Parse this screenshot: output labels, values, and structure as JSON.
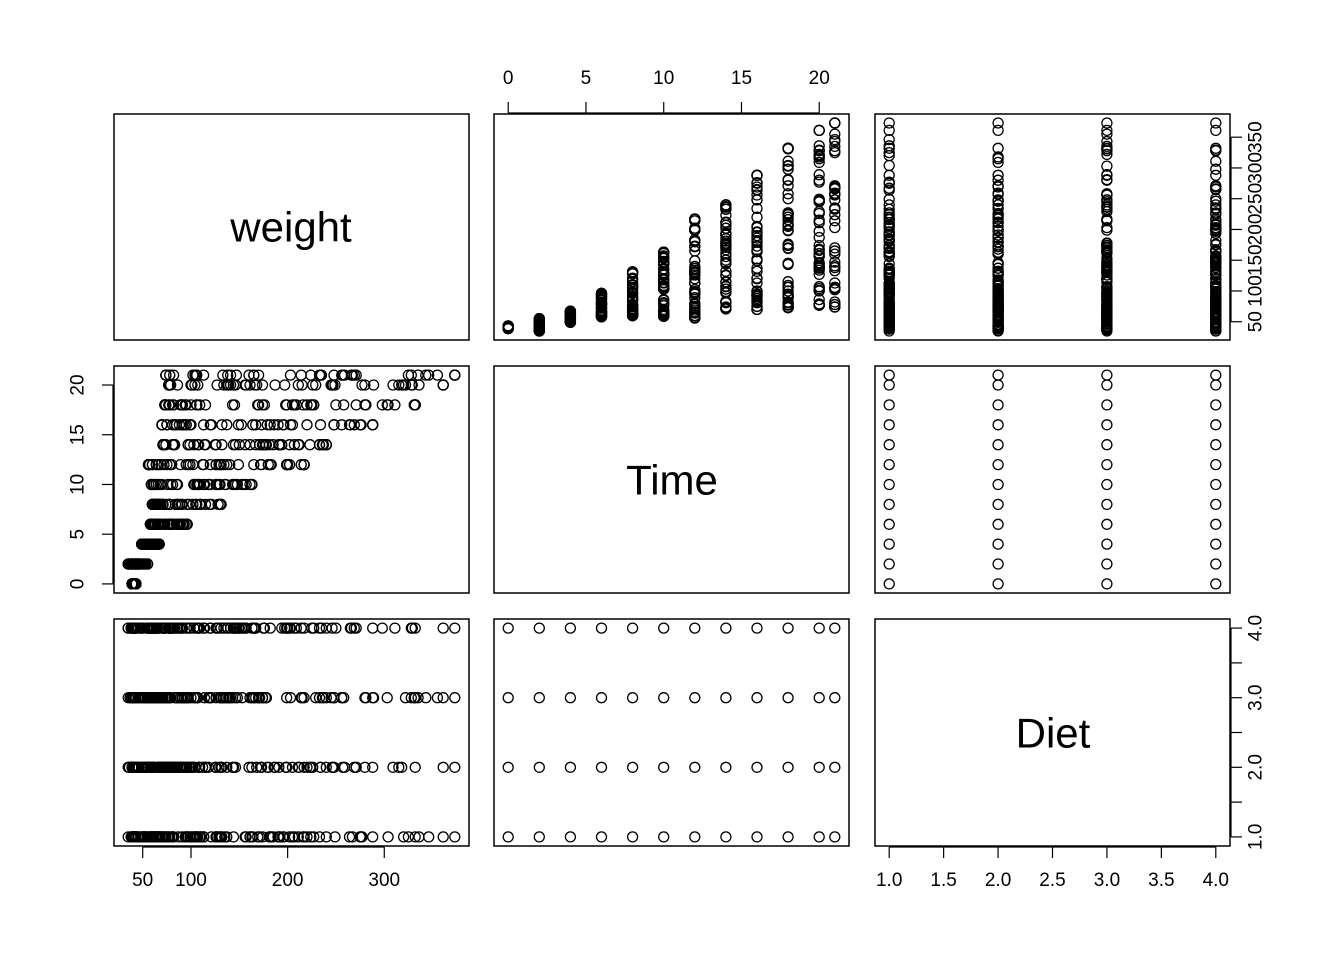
{
  "chart_data": {
    "type": "scatter",
    "variables": [
      "weight",
      "Time",
      "Diet"
    ],
    "ranges": {
      "weight": [
        35,
        373
      ],
      "Time": [
        0,
        21
      ],
      "Diet": [
        1,
        4
      ]
    },
    "axes": {
      "weight": {
        "ticks": [
          50,
          100,
          200,
          300
        ],
        "right_ticks": [
          50,
          100,
          150,
          200,
          250,
          300,
          350
        ]
      },
      "Time": {
        "ticks": [
          0,
          5,
          10,
          15,
          20
        ]
      },
      "Diet": {
        "ticks": [
          "1.0",
          "1.5",
          "2.0",
          "2.5",
          "3.0",
          "3.5",
          "4.0"
        ]
      }
    },
    "time_points": [
      0,
      2,
      4,
      6,
      8,
      10,
      12,
      14,
      16,
      18,
      20,
      21
    ],
    "diets": [
      1,
      2,
      3,
      4
    ],
    "weight_range_by_time": [
      {
        "Time": 0,
        "min": 39,
        "max": 43
      },
      {
        "Time": 2,
        "min": 35,
        "max": 55
      },
      {
        "Time": 4,
        "min": 49,
        "max": 67
      },
      {
        "Time": 6,
        "min": 58,
        "max": 96
      },
      {
        "Time": 8,
        "min": 60,
        "max": 131
      },
      {
        "Time": 10,
        "min": 59,
        "max": 163
      },
      {
        "Time": 12,
        "min": 56,
        "max": 217
      },
      {
        "Time": 14,
        "min": 71,
        "max": 240
      },
      {
        "Time": 16,
        "min": 70,
        "max": 288
      },
      {
        "Time": 18,
        "min": 73,
        "max": 332
      },
      {
        "Time": 20,
        "min": 77,
        "max": 361
      },
      {
        "Time": 21,
        "min": 74,
        "max": 373
      }
    ],
    "weight_range_by_diet": [
      {
        "Diet": 1,
        "min": 35,
        "max": 305
      },
      {
        "Diet": 2,
        "min": 39,
        "max": 331
      },
      {
        "Diet": 3,
        "min": 39,
        "max": 373
      },
      {
        "Diet": 4,
        "min": 39,
        "max": 322
      }
    ],
    "grid": false,
    "legend": "none"
  }
}
